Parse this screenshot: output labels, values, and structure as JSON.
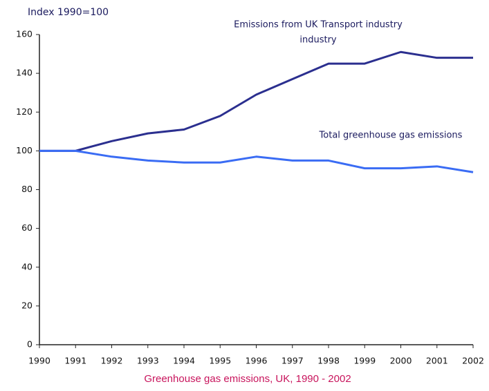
{
  "chart_data": {
    "type": "line",
    "y_label": "Index 1990=100",
    "caption": "Greenhouse gas emissions, UK, 1990 - 2002",
    "annotations": [
      "industry"
    ],
    "x": [
      1990,
      1991,
      1992,
      1993,
      1994,
      1995,
      1996,
      1997,
      1998,
      1999,
      2000,
      2001,
      2002
    ],
    "xlim": [
      1990,
      2002
    ],
    "xticks": [
      1990,
      1991,
      1992,
      1993,
      1994,
      1995,
      1996,
      1997,
      1998,
      1999,
      2000,
      2001,
      2002
    ],
    "ylim": [
      0,
      160
    ],
    "yticks": [
      0,
      20,
      40,
      60,
      80,
      100,
      120,
      140,
      160
    ],
    "grid": false,
    "series": [
      {
        "name": "Emissions from UK Transport industry",
        "color": "#2b2f8f",
        "values": [
          100,
          100,
          105,
          109,
          111,
          118,
          129,
          137,
          145,
          145,
          151,
          148,
          148
        ]
      },
      {
        "name": "Total greenhouse gas emissions",
        "color": "#3a6cf4",
        "values": [
          100,
          100,
          97,
          95,
          94,
          94,
          97,
          95,
          95,
          91,
          91,
          92,
          89
        ]
      }
    ]
  }
}
